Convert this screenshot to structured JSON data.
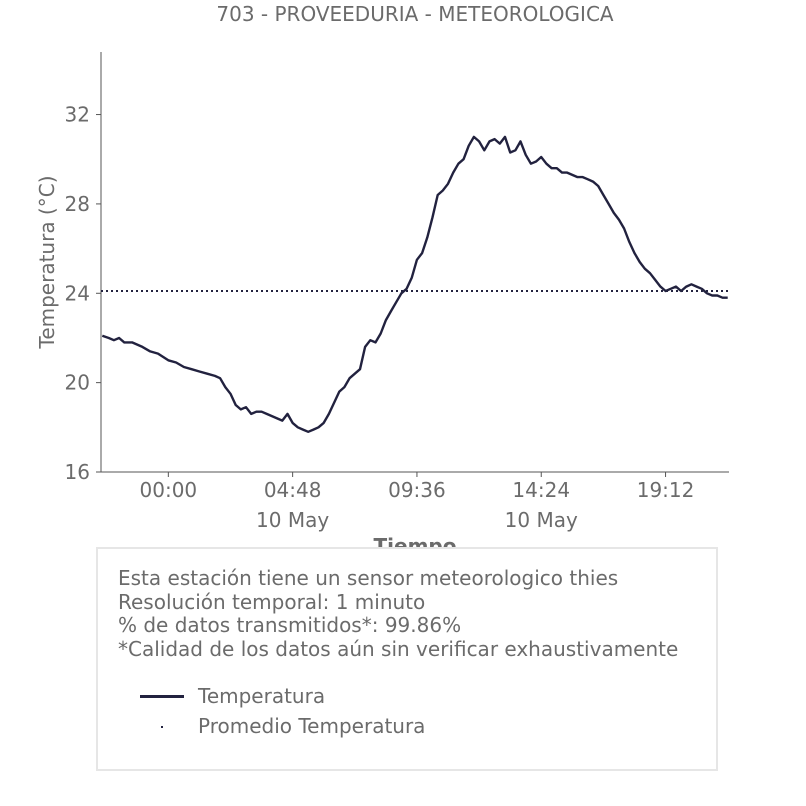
{
  "chart_data": {
    "type": "line",
    "title": "703 - PROVEEDURIA - METEOROLOGICA",
    "xlabel": "Tiempo",
    "ylabel": "Temperatura (°C)",
    "x_unit": "hours",
    "xlim": [
      -2.6,
      21.65
    ],
    "ylim": [
      16,
      34.8
    ],
    "yticks": [
      16,
      20,
      24,
      28,
      32
    ],
    "xticks": [
      {
        "value": 0,
        "label": "00:00",
        "sublabel": ""
      },
      {
        "value": 4.8,
        "label": "04:48",
        "sublabel": "10 May"
      },
      {
        "value": 9.6,
        "label": "09:36",
        "sublabel": ""
      },
      {
        "value": 14.4,
        "label": "14:24",
        "sublabel": "10 May"
      },
      {
        "value": 19.2,
        "label": "19:12",
        "sublabel": ""
      }
    ],
    "grid": false,
    "colors": {
      "line": "#22223f",
      "text": "#6b6b6b",
      "axis": "#555555"
    },
    "series": [
      {
        "name": "Temperatura",
        "style": "solid",
        "x": [
          -2.55,
          -2.3,
          -2.1,
          -1.9,
          -1.7,
          -1.4,
          -1.0,
          -0.7,
          -0.4,
          0.0,
          0.3,
          0.6,
          0.9,
          1.2,
          1.5,
          1.8,
          2.0,
          2.2,
          2.4,
          2.6,
          2.8,
          3.0,
          3.2,
          3.4,
          3.6,
          3.8,
          4.0,
          4.2,
          4.4,
          4.6,
          4.8,
          5.0,
          5.2,
          5.4,
          5.6,
          5.8,
          6.0,
          6.2,
          6.4,
          6.6,
          6.8,
          7.0,
          7.2,
          7.4,
          7.6,
          7.8,
          8.0,
          8.2,
          8.4,
          8.6,
          8.8,
          9.0,
          9.2,
          9.4,
          9.6,
          9.8,
          10.0,
          10.2,
          10.4,
          10.6,
          10.8,
          11.0,
          11.2,
          11.4,
          11.6,
          11.8,
          12.0,
          12.2,
          12.4,
          12.6,
          12.8,
          13.0,
          13.2,
          13.4,
          13.6,
          13.8,
          14.0,
          14.2,
          14.4,
          14.6,
          14.8,
          15.0,
          15.2,
          15.4,
          15.6,
          15.8,
          16.0,
          16.2,
          16.4,
          16.6,
          16.8,
          17.0,
          17.2,
          17.4,
          17.6,
          17.8,
          18.0,
          18.2,
          18.4,
          18.6,
          18.8,
          19.0,
          19.2,
          19.4,
          19.6,
          19.8,
          20.0,
          20.2,
          20.4,
          20.6,
          20.8,
          21.0,
          21.2,
          21.4,
          21.6
        ],
        "values": [
          22.1,
          22.0,
          21.9,
          22.0,
          21.8,
          21.8,
          21.6,
          21.4,
          21.3,
          21.0,
          20.9,
          20.7,
          20.6,
          20.5,
          20.4,
          20.3,
          20.2,
          19.8,
          19.5,
          19.0,
          18.8,
          18.9,
          18.6,
          18.7,
          18.7,
          18.6,
          18.5,
          18.4,
          18.3,
          18.6,
          18.2,
          18.0,
          17.9,
          17.8,
          17.9,
          18.0,
          18.2,
          18.6,
          19.1,
          19.6,
          19.8,
          20.2,
          20.4,
          20.6,
          21.6,
          21.9,
          21.8,
          22.2,
          22.8,
          23.2,
          23.6,
          24.0,
          24.2,
          24.7,
          25.5,
          25.8,
          26.5,
          27.4,
          28.4,
          28.6,
          28.9,
          29.4,
          29.8,
          30.0,
          30.6,
          31.0,
          30.8,
          30.4,
          30.8,
          30.9,
          30.7,
          31.0,
          30.3,
          30.4,
          30.8,
          30.2,
          29.8,
          29.9,
          30.1,
          29.8,
          29.6,
          29.6,
          29.4,
          29.4,
          29.3,
          29.2,
          29.2,
          29.1,
          29.0,
          28.8,
          28.4,
          28.0,
          27.6,
          27.3,
          26.9,
          26.3,
          25.8,
          25.4,
          25.1,
          24.9,
          24.6,
          24.3,
          24.1,
          24.2,
          24.3,
          24.1,
          24.3,
          24.4,
          24.3,
          24.2,
          24.0,
          23.9,
          23.9,
          23.8,
          23.8
        ]
      },
      {
        "name": "Promedio Temperatura",
        "style": "dotted",
        "x": [
          -2.6,
          21.65
        ],
        "values": [
          24.1,
          24.1
        ]
      }
    ]
  },
  "info": {
    "lines": [
      "Esta estación tiene un sensor meteorologico thies",
      "Resolución temporal: 1 minuto",
      "% de datos transmitidos*: 99.86%",
      "*Calidad de los datos aún sin verificar exhaustivamente"
    ],
    "legend": [
      {
        "label": "Temperatura"
      },
      {
        "label": "Promedio Temperatura"
      }
    ]
  }
}
